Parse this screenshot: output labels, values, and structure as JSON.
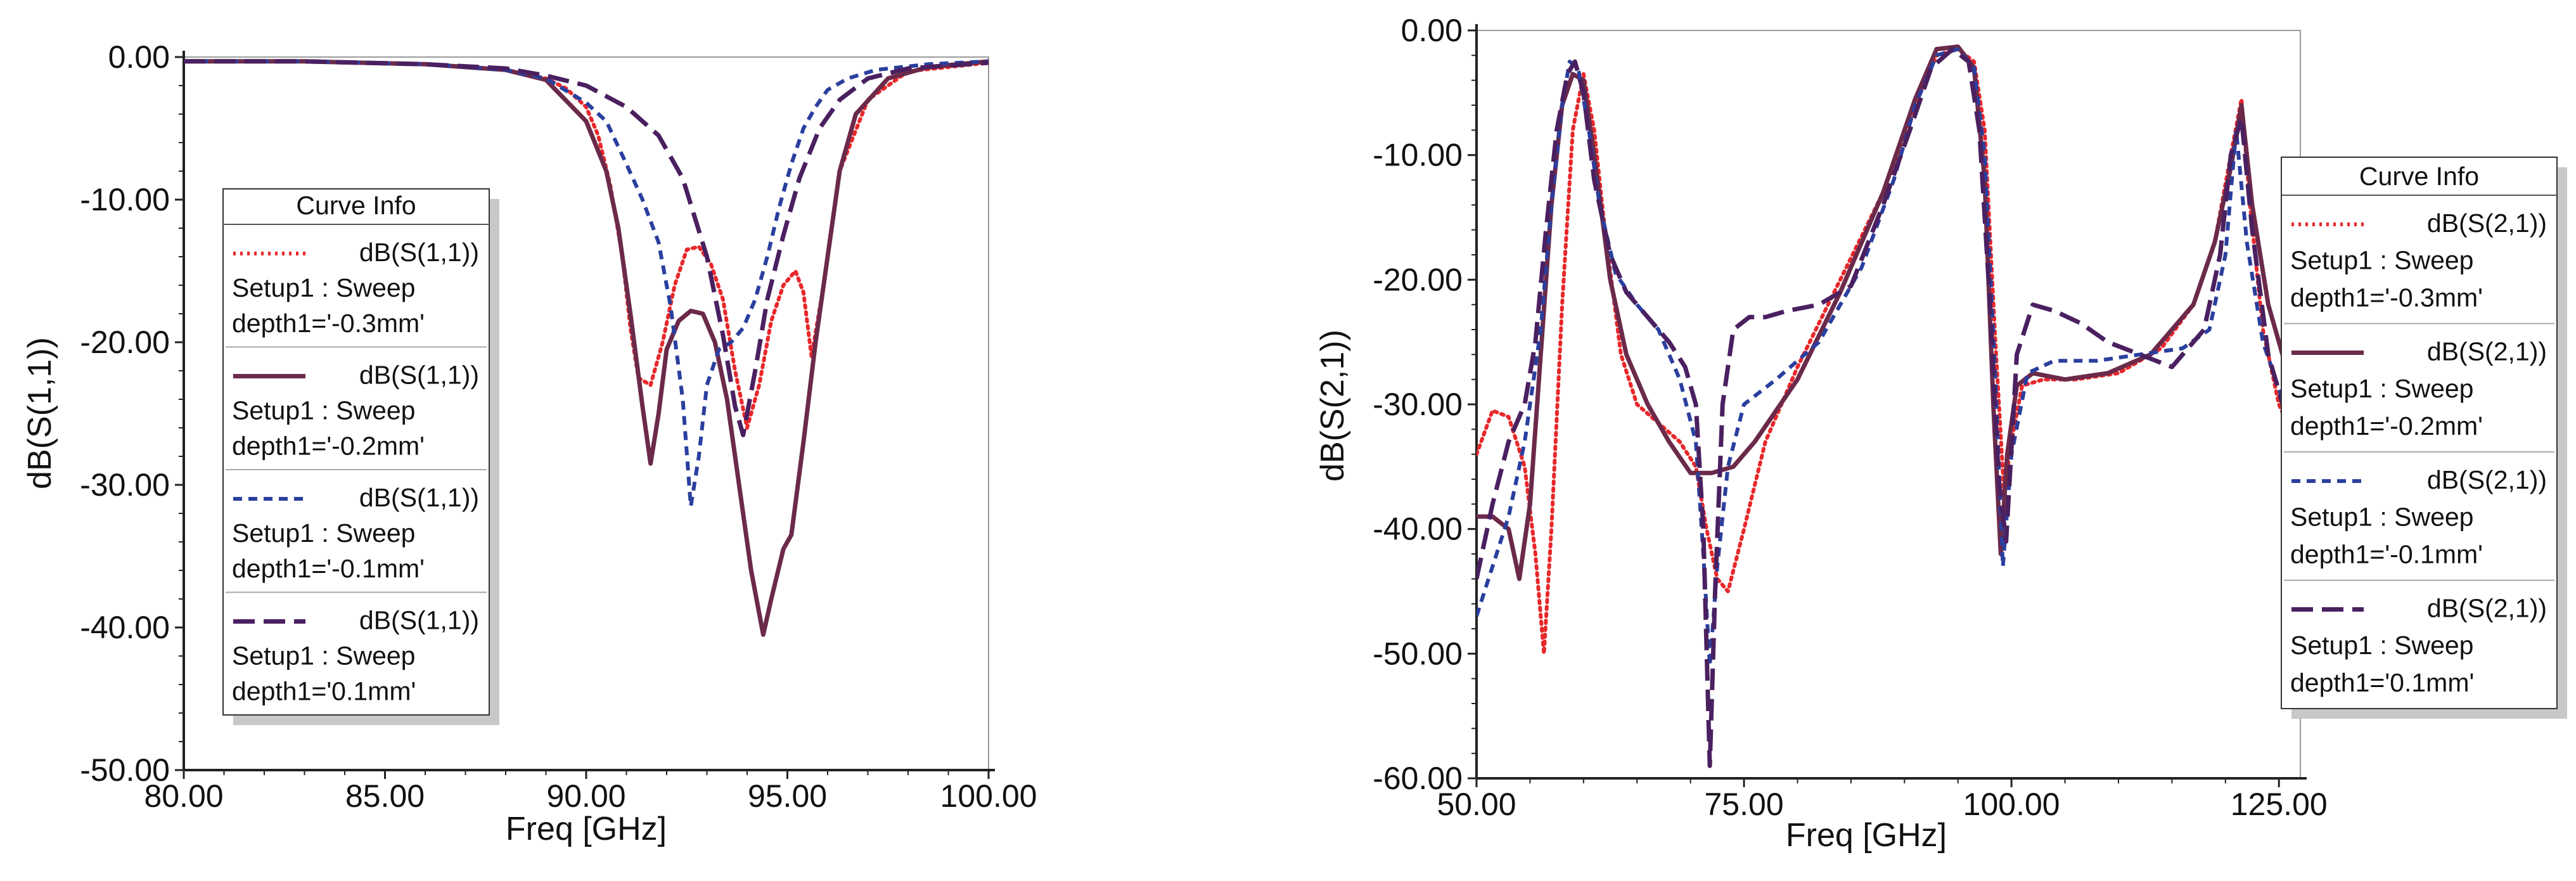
{
  "chart_data": [
    {
      "type": "line",
      "xlabel": "Freq [GHz]",
      "ylabel": "dB(S(1,1))",
      "xlim": [
        80,
        100
      ],
      "ylim": [
        -50,
        0
      ],
      "x_ticks": [
        "80.00",
        "85.00",
        "90.00",
        "95.00",
        "100.00"
      ],
      "y_ticks": [
        "0.00",
        "-10.00",
        "-20.00",
        "-30.00",
        "-40.00",
        "-50.00"
      ],
      "legend": {
        "title": "Curve Info",
        "placement": "left-center"
      },
      "series": [
        {
          "name": "dB(S(1,1))",
          "setup": "Setup1 : Sweep",
          "param": "depth1='-0.3mm'",
          "color": "#e8282b",
          "dash": "dot",
          "x": [
            80,
            83,
            86,
            88,
            89,
            89.5,
            90,
            90.3,
            90.6,
            90.9,
            91.1,
            91.3,
            91.6,
            91.9,
            92.2,
            92.5,
            92.8,
            93.1,
            93.4,
            93.7,
            94.0,
            94.3,
            94.6,
            94.9,
            95.2,
            95.4,
            95.6,
            95.9,
            96.3,
            97,
            98,
            100
          ],
          "y": [
            -0.3,
            -0.3,
            -0.5,
            -0.9,
            -1.5,
            -2.2,
            -3.5,
            -5.5,
            -9,
            -14,
            -19,
            -22.5,
            -23,
            -20,
            -16,
            -13.5,
            -13.3,
            -14.5,
            -17,
            -22,
            -26,
            -23,
            -18.5,
            -16,
            -15,
            -16.5,
            -21,
            -16,
            -8,
            -3,
            -1,
            -0.4
          ]
        },
        {
          "name": "dB(S(1,1))",
          "setup": "Setup1 : Sweep",
          "param": "depth1='-0.2mm'",
          "color": "#6b2a4a",
          "dash": "solid",
          "x": [
            80,
            83,
            86,
            88,
            89,
            90,
            90.5,
            90.8,
            91.1,
            91.4,
            91.6,
            91.8,
            92.0,
            92.3,
            92.6,
            92.9,
            93.2,
            93.5,
            93.8,
            94.1,
            94.4,
            94.6,
            94.9,
            95.1,
            95.4,
            95.7,
            96,
            96.3,
            96.7,
            97.5,
            98.5,
            100
          ],
          "y": [
            -0.3,
            -0.3,
            -0.5,
            -0.9,
            -1.6,
            -4.5,
            -8,
            -12,
            -18,
            -24.5,
            -28.5,
            -25,
            -20.5,
            -18.5,
            -17.8,
            -18,
            -20,
            -24,
            -30,
            -36,
            -40.5,
            -38,
            -34.5,
            -33.5,
            -27,
            -20,
            -14,
            -8,
            -4,
            -1.5,
            -0.7,
            -0.3
          ]
        },
        {
          "name": "dB(S(1,1))",
          "setup": "Setup1 : Sweep",
          "param": "depth1='-0.1mm'",
          "color": "#2a3f9e",
          "dash": "dash",
          "x": [
            80,
            83,
            86,
            88,
            89,
            90,
            90.5,
            91,
            91.4,
            91.8,
            92.1,
            92.4,
            92.6,
            92.8,
            93.0,
            93.3,
            93.6,
            93.9,
            94.2,
            94.5,
            94.8,
            95.1,
            95.4,
            95.7,
            96,
            96.5,
            97.2,
            98.5,
            100
          ],
          "y": [
            -0.3,
            -0.3,
            -0.5,
            -0.9,
            -1.5,
            -3.2,
            -4.5,
            -7.5,
            -10,
            -13,
            -17.5,
            -24,
            -31.5,
            -28,
            -23,
            -20.5,
            -20,
            -19,
            -17,
            -14,
            -10.5,
            -7.5,
            -5,
            -3.5,
            -2.3,
            -1.5,
            -0.9,
            -0.5,
            -0.3
          ]
        },
        {
          "name": "dB(S(1,1))",
          "setup": "Setup1 : Sweep",
          "param": "depth1='0.1mm'",
          "color": "#4a2060",
          "dash": "longdash",
          "x": [
            80,
            83,
            86,
            88,
            89,
            90,
            91,
            91.8,
            92.4,
            93.0,
            93.4,
            93.7,
            93.9,
            94.2,
            94.5,
            94.9,
            95.3,
            95.8,
            96.3,
            97,
            98,
            100
          ],
          "y": [
            -0.3,
            -0.3,
            -0.5,
            -0.8,
            -1.3,
            -2,
            -3.5,
            -5.5,
            -8.5,
            -14,
            -19.5,
            -24.5,
            -26.5,
            -22,
            -17,
            -12.5,
            -8.5,
            -5,
            -3,
            -1.5,
            -0.8,
            -0.4
          ]
        }
      ]
    },
    {
      "type": "line",
      "xlabel": "Freq [GHz]",
      "ylabel": "dB(S(2,1))",
      "xlim": [
        50,
        127
      ],
      "ylim": [
        -60,
        0
      ],
      "x_ticks": [
        "50.00",
        "75.00",
        "100.00",
        "125.00"
      ],
      "y_ticks": [
        "0.00",
        "-10.00",
        "-20.00",
        "-30.00",
        "-40.00",
        "-50.00",
        "-60.00"
      ],
      "legend": {
        "title": "Curve Info",
        "placement": "right"
      },
      "series": [
        {
          "name": "dB(S(2,1))",
          "setup": "Setup1 : Sweep",
          "param": "depth1='-0.3mm'",
          "color": "#e8282b",
          "dash": "dot",
          "x": [
            50,
            51.5,
            53,
            54.5,
            55.5,
            56.3,
            57,
            58,
            59,
            60,
            61,
            62,
            63.5,
            65,
            67,
            69,
            70.5,
            71.5,
            72.5,
            73.5,
            75,
            77,
            80,
            84,
            88,
            91,
            93,
            95,
            96.5,
            97.5,
            98.5,
            99.3,
            100,
            101,
            103,
            106,
            110,
            114,
            117,
            119,
            120.5,
            121.5,
            122.3,
            123.5,
            125,
            127
          ],
          "y": [
            -34,
            -30.5,
            -31,
            -35,
            -42,
            -50,
            -40,
            -22,
            -8,
            -3.5,
            -8,
            -16,
            -26,
            -30,
            -31.5,
            -33,
            -35,
            -40,
            -44,
            -45,
            -40,
            -33,
            -27,
            -20,
            -13,
            -6,
            -2,
            -1.5,
            -2.5,
            -8,
            -25,
            -37,
            -33,
            -28.5,
            -28,
            -28,
            -27.5,
            -25.5,
            -22,
            -17,
            -10,
            -5.5,
            -14,
            -24,
            -30,
            -34
          ]
        },
        {
          "name": "dB(S(2,1))",
          "setup": "Setup1 : Sweep",
          "param": "depth1='-0.2mm'",
          "color": "#6b2a4a",
          "dash": "solid",
          "x": [
            50,
            51.5,
            53,
            54,
            55,
            56,
            57,
            58,
            59,
            60,
            61,
            62.5,
            64,
            66,
            68,
            70,
            72,
            74,
            76,
            80,
            84,
            88,
            91,
            93,
            95,
            96.5,
            97.5,
            98.3,
            99,
            99.6,
            100.5,
            102,
            105,
            109,
            113,
            117,
            119,
            120.5,
            121.5,
            122.5,
            124,
            126,
            127
          ],
          "y": [
            -39,
            -39,
            -40,
            -44,
            -38,
            -26,
            -14,
            -6,
            -3.5,
            -4,
            -10,
            -20,
            -26,
            -30,
            -33,
            -35.5,
            -35.5,
            -35,
            -33,
            -28,
            -21,
            -13,
            -5.5,
            -1.5,
            -1.3,
            -3,
            -12,
            -30,
            -42,
            -34,
            -28.5,
            -27.5,
            -28,
            -27.5,
            -26,
            -22,
            -17,
            -11,
            -6,
            -14,
            -22,
            -28,
            -31
          ]
        },
        {
          "name": "dB(S(2,1))",
          "setup": "Setup1 : Sweep",
          "param": "depth1='-0.1mm'",
          "color": "#2a3f9e",
          "dash": "dash",
          "x": [
            50,
            51.5,
            53,
            54.5,
            56,
            57,
            58,
            58.7,
            59.5,
            60.5,
            61.5,
            63,
            65,
            67,
            69,
            70.5,
            71.2,
            71.8,
            72.5,
            73.5,
            75,
            78,
            82,
            86,
            89,
            91,
            93,
            95,
            96.5,
            97.5,
            98.5,
            99.2,
            100,
            101.5,
            104,
            108,
            112,
            116,
            118.5,
            120,
            121,
            122,
            123.5,
            125.5,
            127
          ],
          "y": [
            -47,
            -43,
            -39,
            -33,
            -24,
            -14,
            -6,
            -2.5,
            -3,
            -8,
            -14,
            -19.5,
            -22,
            -24,
            -28,
            -33,
            -42,
            -51,
            -43,
            -35,
            -30,
            -28,
            -25,
            -19,
            -12,
            -6,
            -2,
            -1.5,
            -3,
            -10,
            -28,
            -43,
            -34,
            -27.5,
            -26.5,
            -26.5,
            -26,
            -25.5,
            -24,
            -18,
            -8,
            -17,
            -25,
            -30,
            -33
          ]
        },
        {
          "name": "dB(S(2,1))",
          "setup": "Setup1 : Sweep",
          "param": "depth1='0.1mm'",
          "color": "#4a2060",
          "dash": "longdash",
          "x": [
            50,
            51.5,
            53,
            54.5,
            55.5,
            56.5,
            57.5,
            58.5,
            59.2,
            60,
            61,
            62.5,
            64,
            66,
            68,
            69.5,
            70.5,
            71.2,
            71.8,
            72.3,
            73,
            74,
            75.5,
            77,
            79,
            82,
            85,
            88,
            90.5,
            92.5,
            94.5,
            96,
            97,
            98,
            98.8,
            99.5,
            100.5,
            102,
            104,
            106.5,
            109,
            112,
            115,
            118,
            119.5,
            120.5,
            121.5,
            122.5,
            124,
            126,
            127
          ],
          "y": [
            -44,
            -38,
            -33,
            -30,
            -25,
            -16,
            -8,
            -3.5,
            -2.5,
            -5,
            -12,
            -18,
            -21,
            -23,
            -25,
            -27,
            -30,
            -40,
            -59,
            -45,
            -30,
            -24,
            -23,
            -23,
            -22.5,
            -22,
            -20.5,
            -14,
            -8,
            -3,
            -1.5,
            -2.5,
            -8,
            -22,
            -36,
            -41,
            -26,
            -22,
            -22.5,
            -23.5,
            -25,
            -26,
            -27,
            -24,
            -18,
            -10,
            -7,
            -16,
            -26,
            -32,
            -34
          ]
        }
      ]
    }
  ]
}
